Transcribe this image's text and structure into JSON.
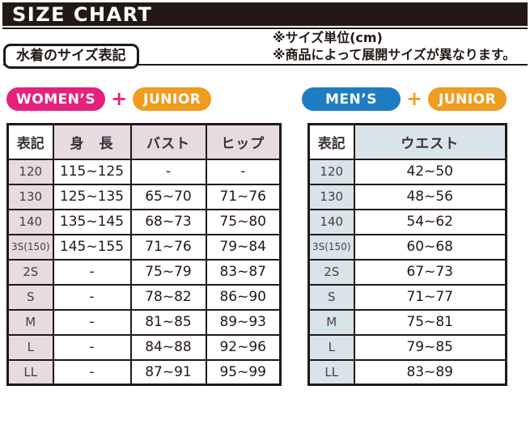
{
  "title": "SIZE CHART",
  "section_label": "水着のサイズ表記",
  "notes": [
    "※サイズ単位(cm)",
    "※商品によって展開サイズが異なります。"
  ],
  "colors": {
    "ink": "#231815",
    "womens_pink": "#E4217C",
    "mens_blue": "#1E7DC2",
    "junior_orange": "#F09C1E",
    "left_tint": "#E5DBE1",
    "right_tint": "#D9E4E9"
  },
  "badges_left": {
    "primary": {
      "label": "WOMEN’S",
      "color": "#E4217C"
    },
    "plus": {
      "label": "+",
      "color": "#E4217C"
    },
    "secondary": {
      "label": "JUNIOR",
      "color": "#F09C1E"
    }
  },
  "badges_right": {
    "primary": {
      "label": "MEN’S",
      "color": "#1E7DC2"
    },
    "plus": {
      "label": "+",
      "color": "#F09C1E"
    },
    "secondary": {
      "label": "JUNIOR",
      "color": "#F09C1E"
    }
  },
  "chart_data": [
    {
      "type": "table",
      "title": "WOMEN’S + JUNIOR",
      "unit": "cm",
      "columns": [
        "表記",
        "身　長",
        "バスト",
        "ヒップ"
      ],
      "rows": [
        [
          "120",
          "115~125",
          "-",
          "-"
        ],
        [
          "130",
          "125~135",
          "65~70",
          "71~76"
        ],
        [
          "140",
          "135~145",
          "68~73",
          "75~80"
        ],
        [
          "3S(150)",
          "145~155",
          "71~76",
          "79~84"
        ],
        [
          "2S",
          "-",
          "75~79",
          "83~87"
        ],
        [
          "S",
          "-",
          "78~82",
          "86~90"
        ],
        [
          "M",
          "-",
          "81~85",
          "89~93"
        ],
        [
          "L",
          "-",
          "84~88",
          "92~96"
        ],
        [
          "LL",
          "-",
          "87~91",
          "95~99"
        ]
      ]
    },
    {
      "type": "table",
      "title": "MEN’S + JUNIOR",
      "unit": "cm",
      "columns": [
        "表記",
        "ウエスト"
      ],
      "rows": [
        [
          "120",
          "42~50"
        ],
        [
          "130",
          "48~56"
        ],
        [
          "140",
          "54~62"
        ],
        [
          "3S(150)",
          "60~68"
        ],
        [
          "2S",
          "67~73"
        ],
        [
          "S",
          "71~77"
        ],
        [
          "M",
          "75~81"
        ],
        [
          "L",
          "79~85"
        ],
        [
          "LL",
          "83~89"
        ]
      ]
    }
  ]
}
